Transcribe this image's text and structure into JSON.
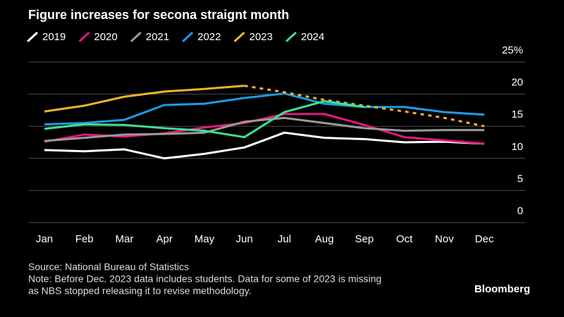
{
  "chart_data": {
    "type": "line",
    "title": "Figure increases for secona straignt month",
    "categories": [
      "Jan",
      "Feb",
      "Mar",
      "Apr",
      "May",
      "Jun",
      "Jul",
      "Aug",
      "Sep",
      "Oct",
      "Nov",
      "Dec"
    ],
    "series": [
      {
        "name": "2019",
        "color": "#ffffff",
        "values": [
          11.3,
          11.1,
          11.4,
          10.0,
          10.7,
          11.7,
          14.0,
          13.2,
          13.0,
          12.5,
          12.6,
          12.3
        ]
      },
      {
        "name": "2020",
        "color": "#e8177f",
        "values": [
          12.6,
          13.7,
          13.4,
          13.9,
          14.8,
          15.5,
          16.9,
          16.9,
          15.2,
          13.3,
          12.8,
          12.3
        ]
      },
      {
        "name": "2021",
        "color": "#9a9a9a",
        "values": [
          12.7,
          13.2,
          13.7,
          13.8,
          14.0,
          15.7,
          16.3,
          15.5,
          14.7,
          14.3,
          14.4,
          14.4
        ]
      },
      {
        "name": "2022",
        "color": "#1e9be8",
        "values": [
          15.3,
          15.5,
          16.0,
          18.3,
          18.5,
          19.4,
          20.1,
          18.5,
          18.0,
          18.0,
          17.2,
          16.8
        ]
      },
      {
        "name": "2023",
        "color": "#f0b429",
        "dashed_after": "Jun",
        "values": [
          17.3,
          18.2,
          19.6,
          20.4,
          20.8,
          21.3,
          20.3,
          19.1,
          18.2,
          17.3,
          16.3,
          15.0
        ]
      },
      {
        "name": "2024",
        "color": "#3fe08f",
        "values": [
          14.6,
          15.3,
          15.2,
          14.7,
          14.3,
          13.3,
          17.2,
          18.9,
          18.0,
          null,
          null,
          null
        ]
      }
    ],
    "ylim": [
      0,
      25
    ],
    "yticks": [
      0,
      5,
      10,
      15,
      20,
      {
        "value": 25,
        "label": "25%"
      }
    ],
    "grid": true,
    "source": "Source: National Bureau of Statistics",
    "note": [
      "Note: Before Dec. 2023 data includes students. Data for some of 2023 is missing",
      "as NBS stopped releasing it to revise methodology."
    ],
    "credit": "Bloomberg"
  }
}
